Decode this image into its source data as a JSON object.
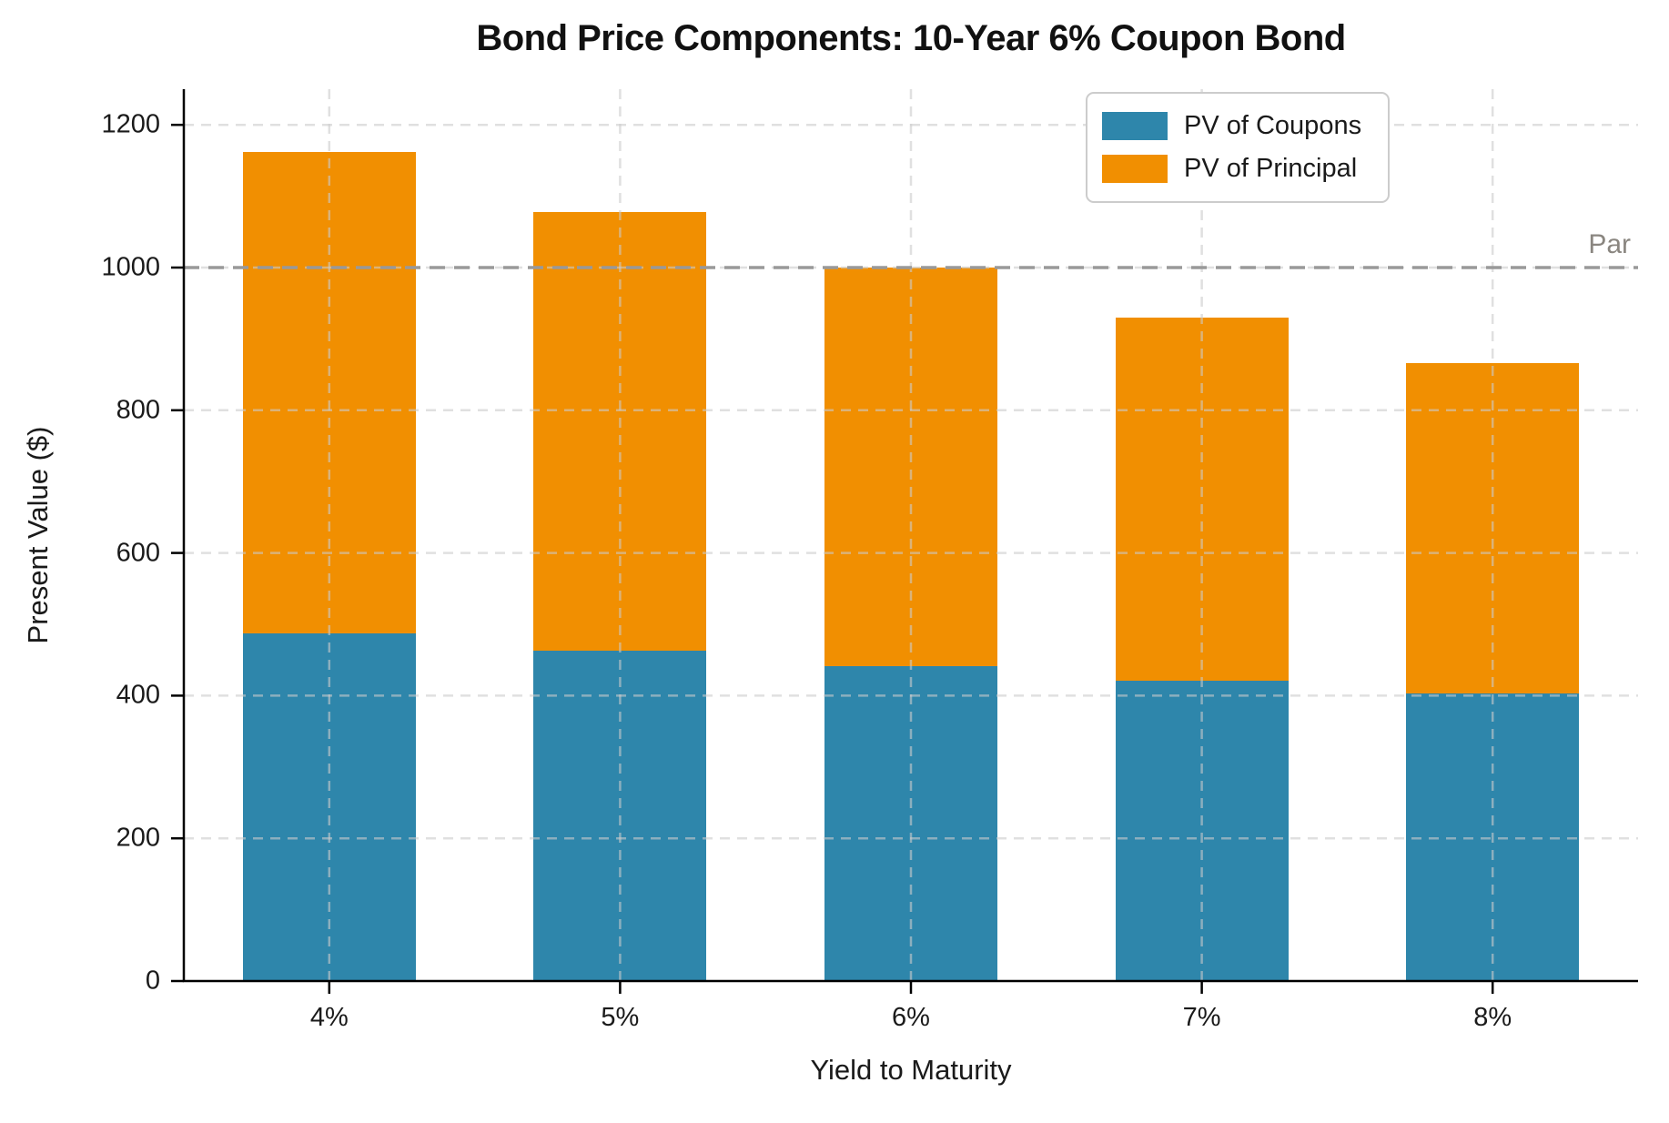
{
  "chart_data": {
    "type": "bar",
    "stacked": true,
    "title": "Bond Price Components: 10-Year 6% Coupon Bond",
    "xlabel": "Yield to Maturity",
    "ylabel": "Present Value ($)",
    "categories": [
      "4%",
      "5%",
      "6%",
      "7%",
      "8%"
    ],
    "series": [
      {
        "name": "PV of Coupons",
        "color": "#2E86AB",
        "values": [
          486.65,
          463.3,
          441.61,
          421.41,
          402.6
        ]
      },
      {
        "name": "PV of Principal",
        "color": "#F18F01",
        "values": [
          675.56,
          613.91,
          558.39,
          508.35,
          463.19
        ]
      }
    ],
    "stack_totals": [
      1162.22,
      1077.22,
      1000.0,
      929.76,
      865.8
    ],
    "yticks": [
      0,
      200,
      400,
      600,
      800,
      1000,
      1200
    ],
    "ylim": [
      0,
      1250
    ],
    "grid": true,
    "grid_style": "dashed",
    "legend_position": "upper right",
    "reference_line": {
      "value": 1000,
      "label": "Par",
      "line_color": "#999999",
      "label_color": "#8a8680",
      "style": "dashed"
    },
    "axis_color": "#000000",
    "background_color": "#ffffff"
  }
}
